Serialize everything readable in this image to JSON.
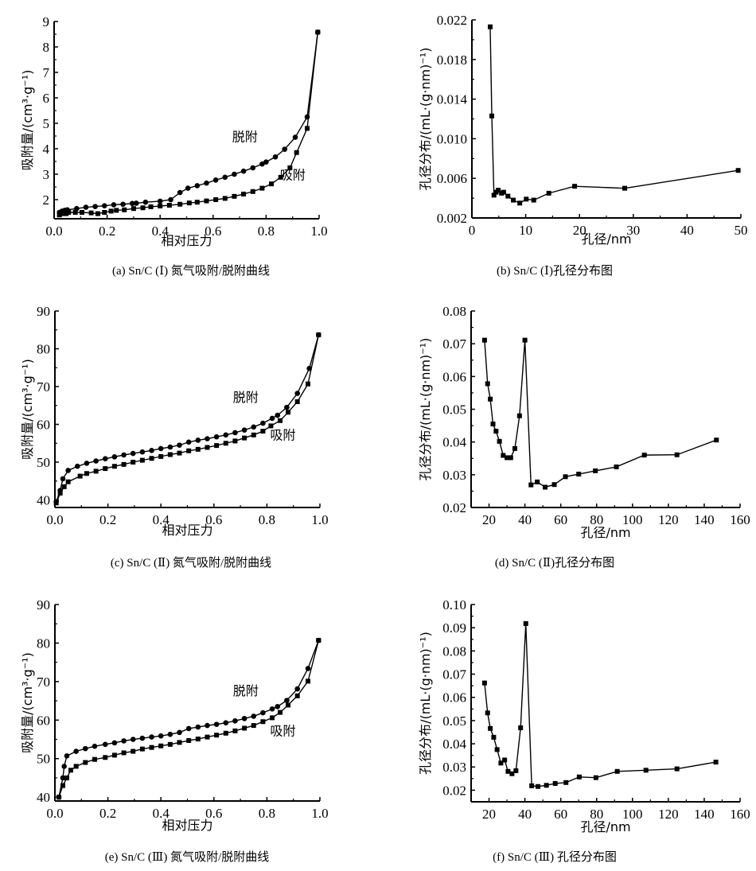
{
  "chart_data": [
    {
      "id": "a",
      "type": "line",
      "caption": "(a) Sn/C (Ⅰ) 氮气吸附/脱附曲线",
      "xlabel": "相对压力",
      "ylabel": "吸附量/(cm³·g⁻¹)",
      "xlim": [
        0,
        1.0
      ],
      "ylim": [
        1.25,
        9
      ],
      "xticks": [
        "0.0",
        "0.2",
        "0.4",
        "0.6",
        "0.8",
        "1.0"
      ],
      "xtick_values": [
        0,
        0.2,
        0.4,
        0.6,
        0.8,
        1.0
      ],
      "yticks": [
        "2",
        "3",
        "4",
        "5",
        "6",
        "7",
        "8",
        "9"
      ],
      "ytick_values": [
        2,
        3,
        4,
        5,
        6,
        7,
        8,
        9
      ],
      "series": [
        {
          "name": "吸附",
          "marker": "square",
          "x": [
            0.02,
            0.03,
            0.045,
            0.055,
            0.08,
            0.105,
            0.14,
            0.165,
            0.19,
            0.215,
            0.235,
            0.265,
            0.3,
            0.335,
            0.365,
            0.4,
            0.435,
            0.475,
            0.51,
            0.54,
            0.575,
            0.61,
            0.645,
            0.68,
            0.715,
            0.75,
            0.785,
            0.82,
            0.855,
            0.89,
            0.915,
            0.955,
            0.995
          ],
          "y": [
            1.4,
            1.45,
            1.45,
            1.5,
            1.5,
            1.5,
            1.48,
            1.45,
            1.5,
            1.55,
            1.58,
            1.6,
            1.65,
            1.68,
            1.72,
            1.75,
            1.78,
            1.82,
            1.87,
            1.9,
            1.95,
            2.0,
            2.05,
            2.13,
            2.22,
            2.32,
            2.45,
            2.62,
            2.88,
            3.25,
            3.85,
            4.8,
            8.58
          ]
        },
        {
          "name": "脱附",
          "marker": "circle",
          "x": [
            0.02,
            0.03,
            0.04,
            0.05,
            0.085,
            0.12,
            0.155,
            0.19,
            0.225,
            0.26,
            0.295,
            0.31,
            0.345,
            0.4,
            0.44,
            0.475,
            0.505,
            0.54,
            0.575,
            0.61,
            0.645,
            0.68,
            0.715,
            0.75,
            0.785,
            0.8,
            0.835,
            0.87,
            0.91,
            0.955,
            0.995
          ],
          "y": [
            1.5,
            1.55,
            1.58,
            1.6,
            1.65,
            1.7,
            1.73,
            1.76,
            1.8,
            1.82,
            1.85,
            1.86,
            1.9,
            1.94,
            2.0,
            2.28,
            2.45,
            2.55,
            2.65,
            2.77,
            2.88,
            3.0,
            3.12,
            3.25,
            3.4,
            3.48,
            3.68,
            3.98,
            4.45,
            5.25,
            8.58
          ]
        }
      ],
      "annotations": [
        {
          "text": "脱附",
          "x": 0.72,
          "y": 4.3
        },
        {
          "text": "吸附",
          "x": 0.9,
          "y": 2.8
        }
      ]
    },
    {
      "id": "b",
      "type": "line",
      "caption": "(b) Sn/C (Ⅰ)孔径分布图",
      "xlabel": "孔径/nm",
      "ylabel": "孔径分布/(mL·(g·nm)⁻¹)",
      "xlim": [
        0,
        50
      ],
      "ylim": [
        0.002,
        0.022
      ],
      "xticks": [
        "0",
        "10",
        "20",
        "30",
        "40",
        "50"
      ],
      "xtick_values": [
        0,
        10,
        20,
        30,
        40,
        50
      ],
      "yticks": [
        "0.002",
        "0.006",
        "0.010",
        "0.014",
        "0.018",
        "0.022"
      ],
      "ytick_values": [
        0.002,
        0.006,
        0.01,
        0.014,
        0.018,
        0.022
      ],
      "series": [
        {
          "name": "孔径分布",
          "marker": "square",
          "x": [
            3.4,
            3.7,
            4.1,
            4.5,
            4.9,
            5.5,
            5.9,
            6.7,
            7.7,
            8.9,
            10.1,
            11.5,
            14.3,
            19.1,
            28.4,
            49.5
          ],
          "y": [
            0.0213,
            0.0123,
            0.0043,
            0.0046,
            0.0048,
            0.0045,
            0.0046,
            0.0042,
            0.0038,
            0.0035,
            0.0039,
            0.0038,
            0.0045,
            0.0052,
            0.005,
            0.0068
          ]
        }
      ]
    },
    {
      "id": "c",
      "type": "line",
      "caption": "(c) Sn/C (Ⅱ) 氮气吸附/脱附曲线",
      "xlabel": "相对压力",
      "ylabel": "吸附量/(cm³·g⁻¹)",
      "xlim": [
        0,
        1.0
      ],
      "ylim": [
        38,
        90
      ],
      "xticks": [
        "0.0",
        "0.2",
        "0.4",
        "0.6",
        "0.8",
        "1.0"
      ],
      "xtick_values": [
        0,
        0.2,
        0.4,
        0.6,
        0.8,
        1.0
      ],
      "yticks": [
        "40",
        "50",
        "60",
        "70",
        "80",
        "90"
      ],
      "ytick_values": [
        40,
        50,
        60,
        70,
        80,
        90
      ],
      "series": [
        {
          "name": "吸附",
          "marker": "square",
          "x": [
            0.005,
            0.02,
            0.035,
            0.05,
            0.095,
            0.12,
            0.155,
            0.19,
            0.225,
            0.26,
            0.295,
            0.33,
            0.365,
            0.4,
            0.435,
            0.47,
            0.505,
            0.54,
            0.575,
            0.61,
            0.645,
            0.68,
            0.715,
            0.75,
            0.785,
            0.815,
            0.85,
            0.88,
            0.915,
            0.955,
            0.995
          ],
          "y": [
            39.2,
            41.8,
            43.5,
            44.8,
            46.3,
            47.0,
            47.6,
            48.3,
            48.9,
            49.4,
            50.0,
            50.5,
            51.0,
            51.5,
            52.0,
            52.4,
            53.0,
            53.4,
            53.9,
            54.4,
            55.0,
            55.6,
            56.4,
            57.2,
            58.2,
            59.6,
            61.0,
            63.2,
            66.0,
            70.7,
            83.7
          ]
        },
        {
          "name": "脱附",
          "marker": "circle",
          "x": [
            0.005,
            0.02,
            0.03,
            0.05,
            0.085,
            0.12,
            0.155,
            0.19,
            0.225,
            0.26,
            0.295,
            0.33,
            0.365,
            0.4,
            0.435,
            0.47,
            0.505,
            0.54,
            0.575,
            0.61,
            0.645,
            0.68,
            0.715,
            0.75,
            0.785,
            0.82,
            0.84,
            0.875,
            0.915,
            0.96,
            0.995
          ],
          "y": [
            39.5,
            42.5,
            45.6,
            47.8,
            48.9,
            49.7,
            50.3,
            50.9,
            51.4,
            51.9,
            52.3,
            52.7,
            53.1,
            53.6,
            54.0,
            54.5,
            55.3,
            55.8,
            56.2,
            56.7,
            57.2,
            57.8,
            58.5,
            59.3,
            60.3,
            61.6,
            62.4,
            64.5,
            68.2,
            74.8,
            83.7
          ]
        }
      ],
      "annotations": [
        {
          "text": "脱附",
          "x": 0.72,
          "y": 66
        },
        {
          "text": "吸附",
          "x": 0.86,
          "y": 56
        }
      ]
    },
    {
      "id": "d",
      "type": "line",
      "caption": "(d) Sn/C (Ⅱ)孔径分布图",
      "xlabel": "孔径/nm",
      "ylabel": "孔径分布/(mL·(g·nm)⁻¹)",
      "xlim": [
        10,
        160
      ],
      "ylim": [
        0.02,
        0.08
      ],
      "xticks": [
        "20",
        "40",
        "60",
        "80",
        "100",
        "120",
        "140",
        "160"
      ],
      "xtick_values": [
        20,
        40,
        60,
        80,
        100,
        120,
        140,
        160
      ],
      "yticks": [
        "0.02",
        "0.03",
        "0.04",
        "0.05",
        "0.06",
        "0.07",
        "0.08"
      ],
      "ytick_values": [
        0.02,
        0.03,
        0.04,
        0.05,
        0.06,
        0.07,
        0.08
      ],
      "series": [
        {
          "name": "孔径分布",
          "marker": "square",
          "x": [
            17.5,
            19.2,
            20.7,
            22.2,
            23.9,
            25.8,
            27.9,
            30.0,
            32.1,
            34.4,
            37.0,
            40.0,
            43.4,
            46.9,
            51.3,
            56.4,
            62.6,
            70.0,
            79.3,
            91.0,
            106.6,
            124.8,
            146.8
          ],
          "y": [
            0.0711,
            0.0578,
            0.0531,
            0.0455,
            0.0433,
            0.0402,
            0.0359,
            0.0352,
            0.0352,
            0.038,
            0.048,
            0.0711,
            0.0269,
            0.0278,
            0.0262,
            0.027,
            0.0294,
            0.0302,
            0.0312,
            0.0324,
            0.036,
            0.0361,
            0.0406
          ]
        }
      ]
    },
    {
      "id": "e",
      "type": "line",
      "caption": "(e) Sn/C (Ⅲ) 氮气吸附/脱附曲线",
      "xlabel": "相对压力",
      "ylabel": "吸附量/(cm³·g⁻¹)",
      "xlim": [
        0,
        1.0
      ],
      "ylim": [
        39,
        90
      ],
      "xticks": [
        "0.0",
        "0.2",
        "0.4",
        "0.6",
        "0.8",
        "1.0"
      ],
      "xtick_values": [
        0,
        0.2,
        0.4,
        0.6,
        0.8,
        1.0
      ],
      "yticks": [
        "40",
        "50",
        "60",
        "70",
        "80",
        "90"
      ],
      "ytick_values": [
        40,
        50,
        60,
        70,
        80,
        90
      ],
      "series": [
        {
          "name": "吸附",
          "marker": "square",
          "x": [
            0.015,
            0.03,
            0.045,
            0.06,
            0.08,
            0.115,
            0.15,
            0.19,
            0.225,
            0.26,
            0.295,
            0.33,
            0.365,
            0.4,
            0.435,
            0.47,
            0.505,
            0.54,
            0.575,
            0.61,
            0.645,
            0.68,
            0.715,
            0.75,
            0.785,
            0.82,
            0.85,
            0.88,
            0.915,
            0.955,
            0.995
          ],
          "y": [
            40.0,
            43.0,
            45.0,
            47.0,
            48.0,
            49.0,
            49.8,
            50.3,
            50.9,
            51.5,
            51.9,
            52.5,
            52.9,
            53.3,
            53.7,
            54.2,
            54.7,
            55.1,
            55.6,
            56.1,
            56.6,
            57.2,
            57.9,
            58.6,
            59.6,
            60.6,
            62.0,
            63.9,
            66.3,
            70.1,
            80.7
          ]
        },
        {
          "name": "脱附",
          "marker": "circle",
          "x": [
            0.015,
            0.03,
            0.035,
            0.045,
            0.08,
            0.115,
            0.15,
            0.19,
            0.225,
            0.26,
            0.295,
            0.33,
            0.365,
            0.4,
            0.435,
            0.47,
            0.505,
            0.54,
            0.575,
            0.61,
            0.645,
            0.68,
            0.715,
            0.75,
            0.785,
            0.82,
            0.84,
            0.875,
            0.915,
            0.955,
            0.995
          ],
          "y": [
            40.0,
            45.0,
            48.0,
            50.7,
            51.9,
            52.6,
            53.2,
            53.7,
            54.1,
            54.6,
            55.0,
            55.3,
            55.6,
            55.9,
            56.3,
            56.8,
            57.8,
            58.2,
            58.6,
            58.9,
            59.3,
            59.8,
            60.4,
            61.0,
            61.9,
            62.9,
            63.5,
            65.1,
            68.1,
            73.4,
            80.7
          ]
        }
      ],
      "annotations": [
        {
          "text": "脱附",
          "x": 0.72,
          "y": 66.5
        },
        {
          "text": "吸附",
          "x": 0.86,
          "y": 56
        }
      ]
    },
    {
      "id": "f",
      "type": "line",
      "caption": "(f) Sn/C (Ⅲ) 孔径分布图",
      "xlabel": "孔径/nm",
      "ylabel": "孔径分布/(mL·(g·nm)⁻¹)",
      "xlim": [
        10,
        160
      ],
      "ylim": [
        0.015,
        0.1
      ],
      "xticks": [
        "20",
        "40",
        "60",
        "80",
        "100",
        "120",
        "140",
        "160"
      ],
      "xtick_values": [
        20,
        40,
        60,
        80,
        100,
        120,
        140,
        160
      ],
      "yticks": [
        "0.02",
        "0.03",
        "0.04",
        "0.05",
        "0.06",
        "0.07",
        "0.08",
        "0.09",
        "0.10"
      ],
      "ytick_values": [
        0.02,
        0.03,
        0.04,
        0.05,
        0.06,
        0.07,
        0.08,
        0.09,
        0.1
      ],
      "series": [
        {
          "name": "孔径分布",
          "marker": "square",
          "x": [
            17.5,
            19.2,
            20.7,
            22.6,
            24.5,
            26.6,
            28.7,
            30.6,
            32.8,
            35.0,
            37.6,
            40.5,
            43.8,
            47.3,
            52.0,
            56.9,
            62.9,
            70.3,
            79.6,
            91.5,
            107.5,
            124.8,
            146.5
          ],
          "y": [
            0.0662,
            0.0533,
            0.0466,
            0.0428,
            0.0375,
            0.0317,
            0.033,
            0.0281,
            0.0271,
            0.0284,
            0.0469,
            0.0918,
            0.0219,
            0.0216,
            0.0221,
            0.0229,
            0.0233,
            0.0257,
            0.0254,
            0.0281,
            0.0286,
            0.0292,
            0.0321
          ]
        }
      ]
    }
  ]
}
